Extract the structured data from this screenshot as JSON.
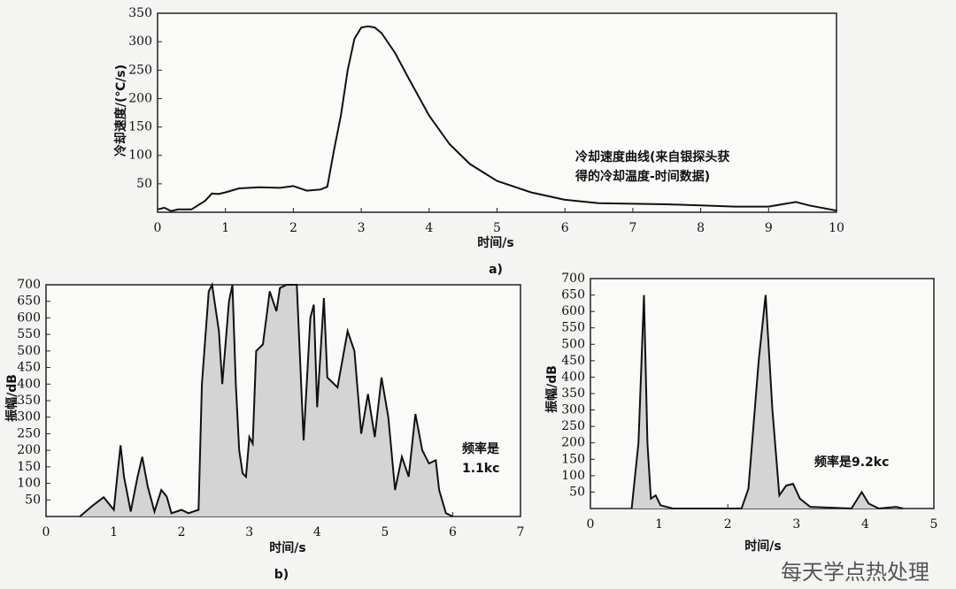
{
  "chart_data": [
    {
      "type": "line",
      "ylabel": "冷却速度/(℃/s)",
      "xlabel": "时间/s",
      "caption": "a)",
      "annotation": [
        "冷却速度曲线(来自银探头获",
        "得的冷却温度-时间数据)"
      ],
      "x": [
        0,
        0.1,
        0.2,
        0.3,
        0.5,
        0.7,
        0.8,
        0.9,
        1.0,
        1.2,
        1.5,
        1.8,
        2.0,
        2.2,
        2.4,
        2.5,
        2.6,
        2.7,
        2.8,
        2.9,
        3.0,
        3.1,
        3.2,
        3.3,
        3.5,
        3.7,
        4.0,
        4.3,
        4.6,
        5.0,
        5.5,
        6.0,
        6.5,
        7.0,
        7.5,
        8.0,
        8.5,
        9.0,
        9.4,
        9.6,
        10
      ],
      "values": [
        5,
        8,
        2,
        5,
        5,
        20,
        33,
        32,
        35,
        42,
        44,
        43,
        46,
        38,
        40,
        45,
        110,
        170,
        250,
        305,
        325,
        327,
        325,
        315,
        280,
        235,
        170,
        120,
        85,
        55,
        35,
        22,
        16,
        15,
        14,
        12,
        10,
        10,
        18,
        12,
        3
      ],
      "xlim": [
        0,
        10
      ],
      "ylim": [
        0,
        350
      ],
      "xticks": [
        0,
        1,
        2,
        3,
        4,
        5,
        6,
        7,
        8,
        9,
        10
      ],
      "yticks": [
        50,
        100,
        150,
        200,
        250,
        300,
        350
      ],
      "color": "#111111"
    },
    {
      "type": "area",
      "ylabel": "振幅/dB",
      "xlabel": "时间/s",
      "caption": "b)",
      "annotation": [
        "频率是",
        "1.1kc"
      ],
      "x": [
        0.5,
        0.7,
        0.85,
        1.0,
        1.05,
        1.1,
        1.15,
        1.25,
        1.35,
        1.42,
        1.5,
        1.6,
        1.7,
        1.78,
        1.85,
        2.0,
        2.1,
        2.25,
        2.3,
        2.4,
        2.45,
        2.55,
        2.6,
        2.7,
        2.75,
        2.8,
        2.85,
        2.9,
        2.95,
        3.0,
        3.05,
        3.1,
        3.2,
        3.25,
        3.3,
        3.4,
        3.45,
        3.55,
        3.7,
        3.8,
        3.9,
        3.95,
        4.0,
        4.1,
        4.15,
        4.3,
        4.45,
        4.55,
        4.65,
        4.75,
        4.85,
        4.95,
        5.05,
        5.15,
        5.25,
        5.35,
        5.45,
        5.55,
        5.65,
        5.75,
        5.8,
        5.9,
        6.0
      ],
      "values": [
        0,
        35,
        58,
        20,
        120,
        215,
        120,
        15,
        120,
        180,
        90,
        15,
        80,
        60,
        10,
        20,
        10,
        20,
        400,
        680,
        700,
        560,
        400,
        650,
        700,
        400,
        200,
        130,
        120,
        240,
        220,
        500,
        520,
        600,
        680,
        620,
        690,
        700,
        700,
        230,
        600,
        640,
        330,
        660,
        420,
        390,
        560,
        500,
        250,
        370,
        240,
        420,
        300,
        80,
        180,
        120,
        310,
        200,
        160,
        170,
        80,
        10,
        0
      ],
      "xlim": [
        0,
        7
      ],
      "ylim": [
        0,
        700
      ],
      "xticks": [
        0,
        1,
        2,
        3,
        4,
        5,
        6,
        7
      ],
      "yticks": [
        50,
        100,
        150,
        200,
        250,
        300,
        350,
        400,
        450,
        500,
        550,
        600,
        650,
        700
      ],
      "color": "#111111",
      "fill": "#d4d4d4"
    },
    {
      "type": "area",
      "ylabel": "振幅/dB",
      "xlabel": "时间/s",
      "annotation": [
        "频率是9.2kc"
      ],
      "x": [
        0.6,
        0.7,
        0.78,
        0.83,
        0.88,
        0.95,
        1.02,
        1.2,
        2.2,
        2.3,
        2.45,
        2.55,
        2.65,
        2.75,
        2.85,
        2.95,
        3.05,
        3.2,
        3.8,
        3.95,
        4.05,
        4.2,
        4.45,
        4.55
      ],
      "values": [
        0,
        200,
        650,
        200,
        30,
        40,
        10,
        0,
        0,
        60,
        450,
        650,
        300,
        40,
        70,
        75,
        30,
        5,
        0,
        50,
        15,
        0,
        5,
        0
      ],
      "xlim": [
        0,
        5
      ],
      "ylim": [
        0,
        700
      ],
      "xticks": [
        0,
        1,
        2,
        3,
        4,
        5
      ],
      "yticks": [
        50,
        100,
        150,
        200,
        250,
        300,
        350,
        400,
        450,
        500,
        550,
        600,
        650,
        700
      ],
      "color": "#111111",
      "fill": "#d4d4d4"
    }
  ],
  "watermark": "每天学点热处理"
}
